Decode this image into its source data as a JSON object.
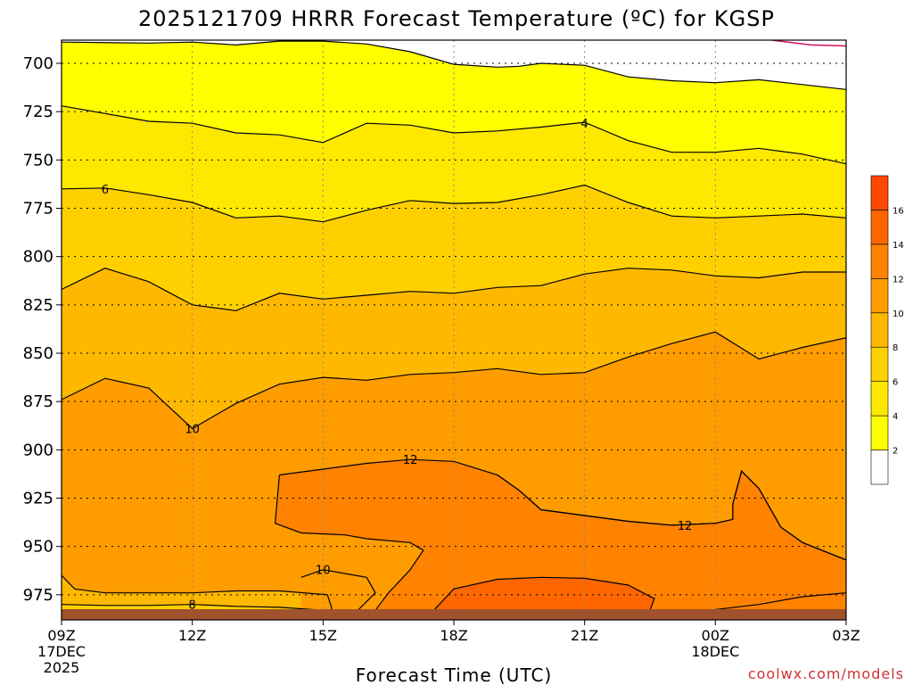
{
  "title": "2025121709 HRRR Forecast Temperature (ºC) for KGSP",
  "credit": "coolwx.com/models",
  "chart_data": {
    "type": "contour",
    "title": "2025121709 HRRR Forecast Temperature (ºC) for KGSP",
    "xlabel": "Forecast Time (UTC)",
    "ylabel": "",
    "x_ticks": [
      {
        "label": "09Z",
        "sub": [
          "17DEC",
          "2025"
        ],
        "hour": 0
      },
      {
        "label": "12Z",
        "sub": [],
        "hour": 3
      },
      {
        "label": "15Z",
        "sub": [],
        "hour": 6
      },
      {
        "label": "18Z",
        "sub": [],
        "hour": 9
      },
      {
        "label": "21Z",
        "sub": [],
        "hour": 12
      },
      {
        "label": "00Z",
        "sub": [
          "18DEC"
        ],
        "hour": 15
      },
      {
        "label": "03Z",
        "sub": [],
        "hour": 18
      }
    ],
    "y_ticks": [
      700,
      725,
      750,
      775,
      800,
      825,
      850,
      875,
      900,
      925,
      950,
      975
    ],
    "xlim_hours": [
      0,
      18
    ],
    "ylim_hpa": [
      688,
      988
    ],
    "grid": true,
    "colorbar": {
      "levels": [
        0,
        2,
        4,
        6,
        8,
        10,
        12,
        14,
        16,
        18
      ],
      "tick_labels": [
        "2",
        "4",
        "6",
        "8",
        "10",
        "12",
        "14",
        "16"
      ],
      "colors": [
        "#ffffff",
        "#ffff00",
        "#ffe800",
        "#ffd000",
        "#ffb800",
        "#ff9c00",
        "#ff8200",
        "#ff6600",
        "#ff4800"
      ]
    },
    "contours": [
      {
        "level": 2,
        "label": "",
        "points": [
          [
            0,
            689
          ],
          [
            2,
            689.5
          ],
          [
            3,
            689
          ],
          [
            4,
            690.5
          ],
          [
            5,
            688.5
          ],
          [
            6,
            688.5
          ],
          [
            7,
            690
          ],
          [
            8,
            694
          ],
          [
            9,
            700.5
          ],
          [
            10,
            702
          ],
          [
            10.5,
            701.5
          ],
          [
            11,
            700
          ],
          [
            12,
            701
          ],
          [
            13,
            707
          ],
          [
            14,
            709
          ],
          [
            15,
            710
          ],
          [
            16,
            708.5
          ],
          [
            17,
            711
          ],
          [
            18,
            713.5
          ]
        ]
      },
      {
        "level": 4,
        "label": "4",
        "label_at": [
          12,
          731
        ],
        "points": [
          [
            0,
            722
          ],
          [
            1,
            726
          ],
          [
            2,
            730
          ],
          [
            3,
            731
          ],
          [
            4,
            736
          ],
          [
            5,
            737
          ],
          [
            6,
            741
          ],
          [
            7,
            731
          ],
          [
            8,
            732
          ],
          [
            9,
            736
          ],
          [
            10,
            735
          ],
          [
            11,
            733
          ],
          [
            12,
            730.5
          ],
          [
            13,
            740
          ],
          [
            14,
            746
          ],
          [
            15,
            746
          ],
          [
            16,
            744
          ],
          [
            17,
            747
          ],
          [
            18,
            752
          ]
        ]
      },
      {
        "level": 6,
        "label": "6",
        "label_at": [
          1,
          765
        ],
        "points": [
          [
            0,
            765
          ],
          [
            1,
            764.5
          ],
          [
            2,
            768
          ],
          [
            3,
            772
          ],
          [
            4,
            780
          ],
          [
            5,
            779
          ],
          [
            6,
            782
          ],
          [
            7,
            776
          ],
          [
            8,
            771
          ],
          [
            9,
            772.5
          ],
          [
            10,
            772
          ],
          [
            11,
            768
          ],
          [
            12,
            763
          ],
          [
            13,
            772
          ],
          [
            14,
            779
          ],
          [
            15,
            780
          ],
          [
            16,
            779
          ],
          [
            17,
            778
          ],
          [
            18,
            780
          ]
        ]
      },
      {
        "level": 8,
        "label": "",
        "points": [
          [
            0,
            817
          ],
          [
            1,
            806
          ],
          [
            2,
            813
          ],
          [
            3,
            825
          ],
          [
            4,
            828
          ],
          [
            5,
            819
          ],
          [
            6,
            822
          ],
          [
            7,
            820
          ],
          [
            8,
            818
          ],
          [
            9,
            819
          ],
          [
            10,
            816
          ],
          [
            11,
            815
          ],
          [
            12,
            809
          ],
          [
            13,
            806
          ],
          [
            14,
            807
          ],
          [
            15,
            810
          ],
          [
            16,
            811
          ],
          [
            17,
            808
          ],
          [
            18,
            808
          ]
        ]
      },
      {
        "level": 10,
        "label": "10",
        "label_at": [
          3,
          889
        ],
        "points": [
          [
            0,
            874
          ],
          [
            1,
            863
          ],
          [
            2,
            868
          ],
          [
            3,
            889
          ],
          [
            4,
            876
          ],
          [
            5,
            866
          ],
          [
            6,
            862.5
          ],
          [
            7,
            864
          ],
          [
            8,
            861
          ],
          [
            9,
            860
          ],
          [
            10,
            858
          ],
          [
            11,
            861
          ],
          [
            12,
            860
          ],
          [
            13,
            852
          ],
          [
            14,
            845
          ],
          [
            15,
            839
          ],
          [
            16,
            853
          ],
          [
            17,
            847
          ],
          [
            18,
            842
          ]
        ]
      },
      {
        "level": 12,
        "label": "12",
        "label_at": [
          8,
          905
        ],
        "points": [
          [
            5,
            913
          ],
          [
            6,
            910
          ],
          [
            7,
            907
          ],
          [
            8,
            905
          ],
          [
            9,
            906
          ],
          [
            10,
            913
          ],
          [
            10.5,
            921
          ],
          [
            11,
            931
          ],
          [
            12,
            934
          ],
          [
            13,
            937
          ],
          [
            14,
            939
          ],
          [
            15,
            938
          ],
          [
            15.4,
            936
          ],
          [
            15.4,
            928
          ],
          [
            15.6,
            911
          ],
          [
            16,
            920
          ],
          [
            16.4,
            936
          ],
          [
            16.5,
            940
          ],
          [
            17,
            948
          ],
          [
            18,
            957
          ]
        ]
      },
      {
        "level": 12,
        "label": "12",
        "label_at": [
          14.3,
          939
        ],
        "points": [
          [
            10,
            913
          ],
          [
            10.5,
            921
          ],
          [
            11,
            931
          ],
          [
            12,
            934
          ],
          [
            13,
            937
          ],
          [
            14,
            939
          ],
          [
            15,
            938
          ],
          [
            15.4,
            936
          ],
          [
            15.4,
            928
          ],
          [
            15.6,
            911
          ],
          [
            16,
            920
          ],
          [
            16.4,
            936
          ],
          [
            16.5,
            940
          ],
          [
            17,
            948
          ],
          [
            18,
            957
          ]
        ]
      },
      {
        "level": 12,
        "label": "",
        "points": [
          [
            5,
            913
          ],
          [
            4.9,
            938
          ],
          [
            5.5,
            943
          ],
          [
            6.5,
            944
          ],
          [
            7,
            946
          ],
          [
            8,
            948
          ],
          [
            8.3,
            952
          ],
          [
            8,
            962
          ],
          [
            7.5,
            974
          ],
          [
            7.2,
            983
          ]
        ]
      },
      {
        "level": 10,
        "label": "10",
        "label_at": [
          6,
          962
        ],
        "points": [
          [
            0,
            965
          ],
          [
            0.3,
            972
          ],
          [
            1,
            974
          ],
          [
            3,
            974
          ],
          [
            4,
            973
          ],
          [
            5,
            973
          ],
          [
            6.1,
            975
          ],
          [
            6.2,
            982
          ],
          [
            6.1,
            988
          ]
        ]
      },
      {
        "level": 10,
        "label": "",
        "points": [
          [
            5.5,
            966
          ],
          [
            6,
            962
          ],
          [
            7,
            966
          ],
          [
            7.2,
            974
          ],
          [
            6.8,
            983
          ]
        ]
      },
      {
        "level": 8,
        "label": "8",
        "label_at": [
          3,
          980
        ],
        "points": [
          [
            0,
            980
          ],
          [
            1,
            980.5
          ],
          [
            2,
            980.5
          ],
          [
            3,
            980
          ],
          [
            4,
            981
          ],
          [
            5,
            981.5
          ],
          [
            6,
            983
          ]
        ]
      },
      {
        "level": 14,
        "label": "",
        "points": [
          [
            8.5,
            984
          ],
          [
            9,
            972
          ],
          [
            10,
            967
          ],
          [
            11,
            966
          ],
          [
            12,
            966.5
          ],
          [
            13,
            970
          ],
          [
            13.6,
            977
          ],
          [
            13.5,
            983
          ]
        ]
      },
      {
        "level": 12,
        "label": "",
        "points": [
          [
            14.5,
            984
          ],
          [
            16,
            980
          ],
          [
            17,
            976
          ],
          [
            18,
            974
          ]
        ]
      }
    ],
    "terrain_color": "#a0522d",
    "min_series_color": "#cc1060"
  }
}
